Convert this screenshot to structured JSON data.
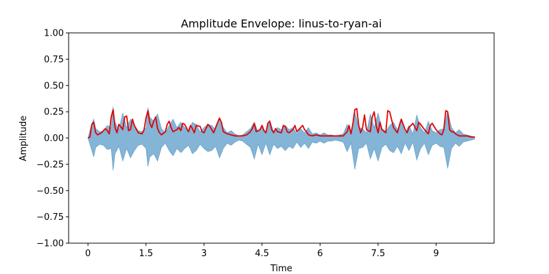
{
  "chart_data": {
    "type": "line",
    "title": "Amplitude Envelope: linus-to-ryan-ai",
    "xlabel": "Time",
    "ylabel": "Amplitude",
    "xlim": [
      -0.5,
      10.5
    ],
    "ylim": [
      -1.0,
      1.0
    ],
    "x_ticks": [
      0,
      1.5,
      3,
      4.5,
      6,
      7.5,
      9
    ],
    "x_tick_labels": [
      "0",
      "1.5",
      "3",
      "4.5",
      "6",
      "7.5",
      "9"
    ],
    "y_ticks": [
      1.0,
      0.75,
      0.5,
      0.25,
      0.0,
      -0.25,
      -0.5,
      -0.75,
      -1.0
    ],
    "y_tick_labels": [
      "1.00",
      "0.75",
      "0.50",
      "0.25",
      "0.00",
      "−0.25",
      "−0.50",
      "−0.75",
      "−1.00"
    ],
    "grid": false,
    "colors": {
      "waveform": "#1f77b4",
      "envelope": "#e00000"
    },
    "series": [
      {
        "role": "waveform",
        "x": [
          0.0,
          0.1,
          0.15,
          0.2,
          0.3,
          0.4,
          0.5,
          0.6,
          0.65,
          0.7,
          0.8,
          0.9,
          1.0,
          1.1,
          1.2,
          1.3,
          1.4,
          1.5,
          1.55,
          1.6,
          1.7,
          1.8,
          1.9,
          2.0,
          2.1,
          2.2,
          2.3,
          2.4,
          2.5,
          2.6,
          2.7,
          2.8,
          2.9,
          3.0,
          3.1,
          3.2,
          3.3,
          3.4,
          3.5,
          3.6,
          3.7,
          3.8,
          3.9,
          4.0,
          4.1,
          4.2,
          4.3,
          4.4,
          4.5,
          4.6,
          4.7,
          4.8,
          4.9,
          5.0,
          5.1,
          5.2,
          5.3,
          5.4,
          5.5,
          5.6,
          5.7,
          5.8,
          5.9,
          6.0,
          6.1,
          6.2,
          6.3,
          6.4,
          6.5,
          6.6,
          6.7,
          6.8,
          6.9,
          7.0,
          7.1,
          7.2,
          7.3,
          7.4,
          7.5,
          7.6,
          7.7,
          7.8,
          7.9,
          8.0,
          8.1,
          8.2,
          8.3,
          8.4,
          8.5,
          8.6,
          8.7,
          8.8,
          8.9,
          9.0,
          9.1,
          9.2,
          9.3,
          9.4,
          9.5,
          9.6,
          9.7,
          9.8,
          9.9,
          10.0
        ],
        "upper": [
          0.0,
          0.14,
          0.18,
          0.09,
          0.06,
          0.07,
          0.12,
          0.1,
          0.3,
          0.15,
          0.08,
          0.24,
          0.1,
          0.18,
          0.12,
          0.07,
          0.06,
          0.1,
          0.29,
          0.2,
          0.16,
          0.23,
          0.09,
          0.05,
          0.12,
          0.18,
          0.1,
          0.15,
          0.1,
          0.07,
          0.15,
          0.13,
          0.06,
          0.1,
          0.13,
          0.12,
          0.08,
          0.19,
          0.1,
          0.05,
          0.07,
          0.04,
          0.02,
          0.03,
          0.06,
          0.09,
          0.15,
          0.06,
          0.12,
          0.05,
          0.17,
          0.06,
          0.1,
          0.08,
          0.12,
          0.08,
          0.1,
          0.04,
          0.09,
          0.05,
          0.1,
          0.04,
          0.05,
          0.03,
          0.05,
          0.03,
          0.03,
          0.02,
          0.03,
          0.04,
          0.13,
          0.05,
          0.25,
          0.1,
          0.09,
          0.05,
          0.23,
          0.1,
          0.24,
          0.09,
          0.06,
          0.12,
          0.15,
          0.08,
          0.16,
          0.05,
          0.12,
          0.04,
          0.22,
          0.1,
          0.05,
          0.16,
          0.07,
          0.05,
          0.08,
          0.09,
          0.26,
          0.1,
          0.05,
          0.08,
          0.04,
          0.03,
          0.02,
          0.01
        ],
        "lower": [
          0.0,
          -0.12,
          -0.18,
          -0.09,
          -0.06,
          -0.07,
          -0.11,
          -0.1,
          -0.31,
          -0.15,
          -0.08,
          -0.22,
          -0.1,
          -0.19,
          -0.12,
          -0.07,
          -0.06,
          -0.1,
          -0.27,
          -0.18,
          -0.15,
          -0.22,
          -0.09,
          -0.05,
          -0.12,
          -0.17,
          -0.1,
          -0.14,
          -0.1,
          -0.07,
          -0.15,
          -0.12,
          -0.06,
          -0.1,
          -0.13,
          -0.12,
          -0.08,
          -0.19,
          -0.1,
          -0.05,
          -0.07,
          -0.04,
          -0.02,
          -0.03,
          -0.06,
          -0.09,
          -0.2,
          -0.06,
          -0.16,
          -0.05,
          -0.16,
          -0.06,
          -0.1,
          -0.08,
          -0.12,
          -0.08,
          -0.1,
          -0.04,
          -0.09,
          -0.05,
          -0.1,
          -0.04,
          -0.05,
          -0.03,
          -0.05,
          -0.03,
          -0.03,
          -0.02,
          -0.03,
          -0.04,
          -0.13,
          -0.05,
          -0.3,
          -0.1,
          -0.09,
          -0.05,
          -0.2,
          -0.1,
          -0.22,
          -0.09,
          -0.06,
          -0.12,
          -0.14,
          -0.08,
          -0.15,
          -0.05,
          -0.12,
          -0.04,
          -0.21,
          -0.1,
          -0.05,
          -0.16,
          -0.07,
          -0.05,
          -0.08,
          -0.09,
          -0.29,
          -0.1,
          -0.05,
          -0.08,
          -0.04,
          -0.03,
          -0.02,
          -0.01
        ]
      },
      {
        "role": "envelope",
        "x": [
          0.0,
          0.05,
          0.1,
          0.15,
          0.2,
          0.25,
          0.35,
          0.45,
          0.5,
          0.55,
          0.6,
          0.65,
          0.7,
          0.75,
          0.8,
          0.9,
          0.95,
          1.0,
          1.05,
          1.1,
          1.15,
          1.2,
          1.3,
          1.4,
          1.45,
          1.5,
          1.55,
          1.6,
          1.65,
          1.7,
          1.75,
          1.8,
          1.85,
          1.9,
          2.0,
          2.05,
          2.1,
          2.15,
          2.2,
          2.3,
          2.35,
          2.4,
          2.45,
          2.5,
          2.6,
          2.65,
          2.7,
          2.75,
          2.8,
          2.9,
          2.95,
          3.0,
          3.1,
          3.15,
          3.2,
          3.25,
          3.3,
          3.4,
          3.45,
          3.5,
          3.6,
          3.7,
          3.8,
          3.9,
          4.0,
          4.1,
          4.2,
          4.25,
          4.3,
          4.35,
          4.45,
          4.5,
          4.55,
          4.6,
          4.65,
          4.7,
          4.75,
          4.8,
          4.85,
          4.9,
          5.0,
          5.05,
          5.1,
          5.15,
          5.2,
          5.3,
          5.35,
          5.4,
          5.5,
          5.55,
          5.6,
          5.65,
          5.7,
          5.8,
          5.9,
          6.0,
          6.1,
          6.2,
          6.3,
          6.4,
          6.5,
          6.6,
          6.7,
          6.75,
          6.8,
          6.85,
          6.9,
          6.95,
          7.0,
          7.05,
          7.1,
          7.15,
          7.2,
          7.3,
          7.35,
          7.4,
          7.45,
          7.5,
          7.55,
          7.6,
          7.7,
          7.75,
          7.8,
          7.9,
          8.0,
          8.05,
          8.1,
          8.2,
          8.25,
          8.3,
          8.4,
          8.5,
          8.55,
          8.6,
          8.7,
          8.8,
          8.85,
          8.9,
          9.0,
          9.1,
          9.15,
          9.2,
          9.25,
          9.3,
          9.35,
          9.4,
          9.45,
          9.5,
          9.6,
          9.7,
          9.8,
          9.9,
          10.0
        ],
        "values": [
          0.0,
          0.01,
          0.13,
          0.15,
          0.05,
          0.03,
          0.05,
          0.09,
          0.07,
          0.04,
          0.2,
          0.27,
          0.1,
          0.05,
          0.13,
          0.08,
          0.2,
          0.21,
          0.07,
          0.08,
          0.18,
          0.12,
          0.05,
          0.04,
          0.08,
          0.19,
          0.26,
          0.14,
          0.1,
          0.16,
          0.2,
          0.09,
          0.05,
          0.03,
          0.06,
          0.13,
          0.16,
          0.1,
          0.06,
          0.08,
          0.1,
          0.07,
          0.14,
          0.13,
          0.06,
          0.12,
          0.09,
          0.05,
          0.12,
          0.11,
          0.06,
          0.05,
          0.13,
          0.11,
          0.08,
          0.05,
          0.1,
          0.19,
          0.15,
          0.06,
          0.04,
          0.03,
          0.02,
          0.02,
          0.02,
          0.03,
          0.06,
          0.09,
          0.14,
          0.06,
          0.08,
          0.12,
          0.07,
          0.05,
          0.14,
          0.16,
          0.08,
          0.05,
          0.09,
          0.06,
          0.05,
          0.12,
          0.11,
          0.06,
          0.05,
          0.08,
          0.12,
          0.06,
          0.1,
          0.12,
          0.08,
          0.06,
          0.03,
          0.02,
          0.03,
          0.02,
          0.02,
          0.02,
          0.02,
          0.02,
          0.02,
          0.02,
          0.06,
          0.12,
          0.04,
          0.14,
          0.27,
          0.28,
          0.12,
          0.05,
          0.1,
          0.22,
          0.08,
          0.06,
          0.2,
          0.25,
          0.12,
          0.05,
          0.15,
          0.08,
          0.05,
          0.26,
          0.25,
          0.1,
          0.05,
          0.12,
          0.18,
          0.08,
          0.05,
          0.1,
          0.14,
          0.07,
          0.15,
          0.13,
          0.08,
          0.04,
          0.12,
          0.14,
          0.08,
          0.04,
          0.03,
          0.08,
          0.26,
          0.25,
          0.08,
          0.06,
          0.06,
          0.04,
          0.02,
          0.02,
          0.02,
          0.01,
          0.01
        ]
      }
    ]
  }
}
